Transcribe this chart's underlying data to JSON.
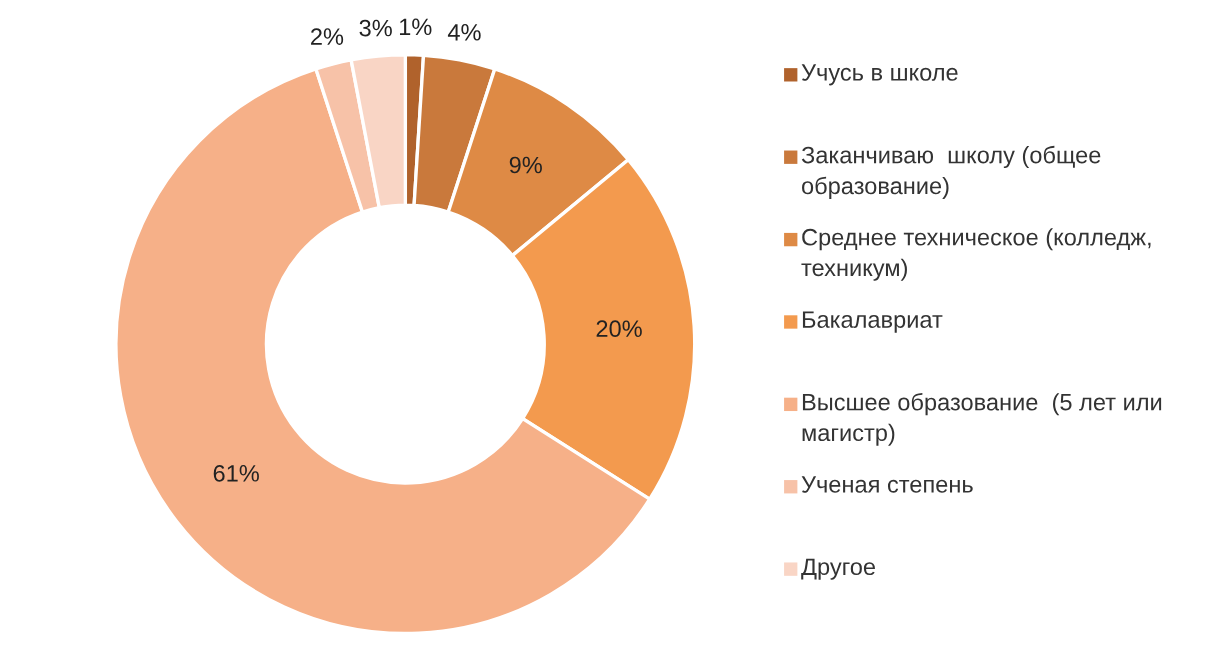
{
  "chart_data": {
    "type": "donut",
    "categories": [
      "Учусь в школе",
      "Заканчиваю  школу (общее образование)",
      "Среднее техническое (колледж, техникум)",
      "Бакалавриат",
      "Высшее образование  (5 лет или магистр)",
      "Ученая степень",
      "Другое"
    ],
    "values": [
      1,
      4,
      9,
      20,
      61,
      2,
      3
    ],
    "colors": [
      "#b0622c",
      "#c9793c",
      "#de8a45",
      "#f39a4e",
      "#f6b088",
      "#f7c2a8",
      "#f9d5c5"
    ],
    "value_labels": [
      "1%",
      "4%",
      "9%",
      "20%",
      "61%",
      "2%",
      "3%"
    ],
    "legend": "right"
  }
}
